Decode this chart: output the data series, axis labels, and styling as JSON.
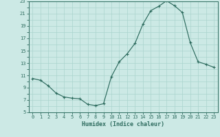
{
  "x": [
    0,
    1,
    2,
    3,
    4,
    5,
    6,
    7,
    8,
    9,
    10,
    11,
    12,
    13,
    14,
    15,
    16,
    17,
    18,
    19,
    20,
    21,
    22,
    23
  ],
  "y": [
    10.5,
    10.2,
    9.3,
    8.1,
    7.5,
    7.3,
    7.2,
    6.3,
    6.1,
    6.4,
    10.8,
    13.2,
    14.5,
    16.2,
    19.3,
    21.5,
    22.2,
    23.1,
    22.3,
    21.2,
    16.3,
    13.2,
    12.8,
    12.3
  ],
  "line_color": "#2d6b5e",
  "bg_color": "#cce9e5",
  "grid_color": "#aad4ce",
  "xlabel": "Humidex (Indice chaleur)",
  "xlim": [
    -0.5,
    23.5
  ],
  "ylim": [
    5,
    23
  ],
  "yticks": [
    5,
    7,
    9,
    11,
    13,
    15,
    17,
    19,
    21,
    23
  ],
  "xticks": [
    0,
    1,
    2,
    3,
    4,
    5,
    6,
    7,
    8,
    9,
    10,
    11,
    12,
    13,
    14,
    15,
    16,
    17,
    18,
    19,
    20,
    21,
    22,
    23
  ],
  "tick_fontsize": 5.0,
  "xlabel_fontsize": 6.0
}
